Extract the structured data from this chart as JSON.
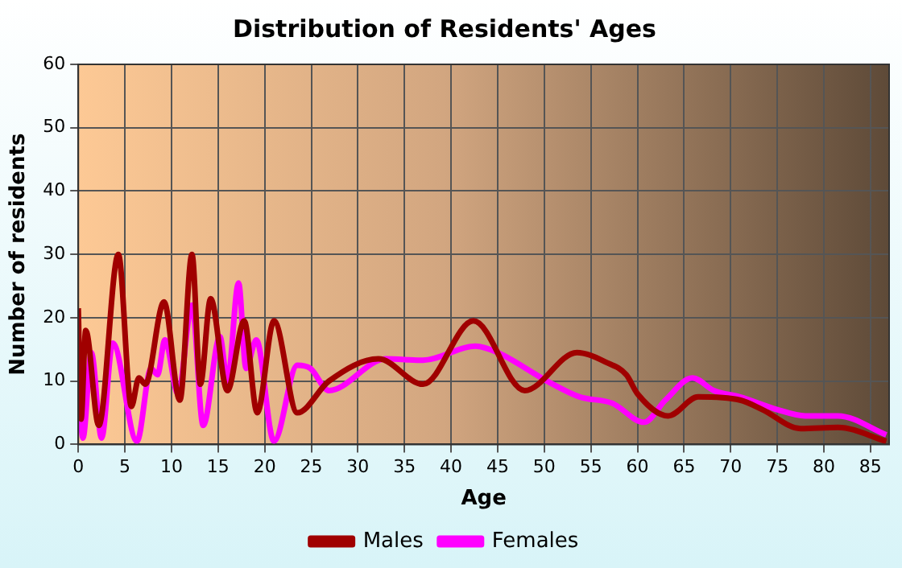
{
  "chart_data": {
    "type": "line",
    "title": "Distribution of Residents' Ages",
    "xlabel": "Age",
    "ylabel": "Number of residents",
    "xlim": [
      0,
      87
    ],
    "xticks": [
      0,
      5,
      10,
      15,
      20,
      25,
      30,
      35,
      40,
      45,
      50,
      55,
      60,
      65,
      70,
      75,
      80,
      85
    ],
    "ylim": [
      0,
      60
    ],
    "yticks": [
      0,
      10,
      20,
      30,
      40,
      50,
      60
    ],
    "grid": true,
    "legend": "bottom",
    "marker": "none",
    "line_style": "solid",
    "series": [
      {
        "name": "Males",
        "color": "#a00000",
        "x": [
          0,
          0.3,
          0.8,
          2.2,
          4.3,
          5.7,
          6.5,
          7.2,
          9.2,
          10.9,
          12.2,
          13.1,
          14.2,
          16,
          17.8,
          19.2,
          21,
          23.5,
          26.9,
          32.2,
          37,
          42.4,
          47.9,
          53.5,
          56.6,
          58.8,
          60,
          63.3,
          66.5,
          71,
          73.4,
          77.5,
          81.5,
          86.7
        ],
        "values": [
          21.5,
          4,
          18,
          3,
          30,
          6,
          10.5,
          9.5,
          22.5,
          7,
          30,
          9.5,
          23,
          8.5,
          19.5,
          5,
          19.5,
          5,
          10,
          13.5,
          9.5,
          19.5,
          8.5,
          14.5,
          13,
          11,
          8,
          4.5,
          7.5,
          7,
          5.5,
          2.5,
          2.7,
          0.5
        ]
      },
      {
        "name": "Females",
        "color": "#ff00ff",
        "x": [
          0,
          0.5,
          1.4,
          2.5,
          3.7,
          6.3,
          7.8,
          8.5,
          9.3,
          10.7,
          12.2,
          13.4,
          15.2,
          16,
          17.2,
          18,
          19.1,
          21,
          23.5,
          24.9,
          26.9,
          33,
          37,
          42.6,
          45,
          50.3,
          53.8,
          57.3,
          60.7,
          63,
          65.9,
          68.2,
          71,
          75,
          78,
          81.5,
          86.7
        ],
        "values": [
          10,
          1,
          14.5,
          1,
          16,
          0.5,
          12,
          11,
          16.5,
          8,
          22,
          3,
          17,
          10,
          25.5,
          12,
          16.5,
          0.5,
          12.5,
          12,
          8.5,
          13.5,
          13.3,
          15.5,
          14.5,
          10,
          7.5,
          6.5,
          3.5,
          7,
          10.5,
          8.5,
          7.5,
          5.5,
          4.5,
          4.5,
          1.5
        ]
      }
    ]
  }
}
